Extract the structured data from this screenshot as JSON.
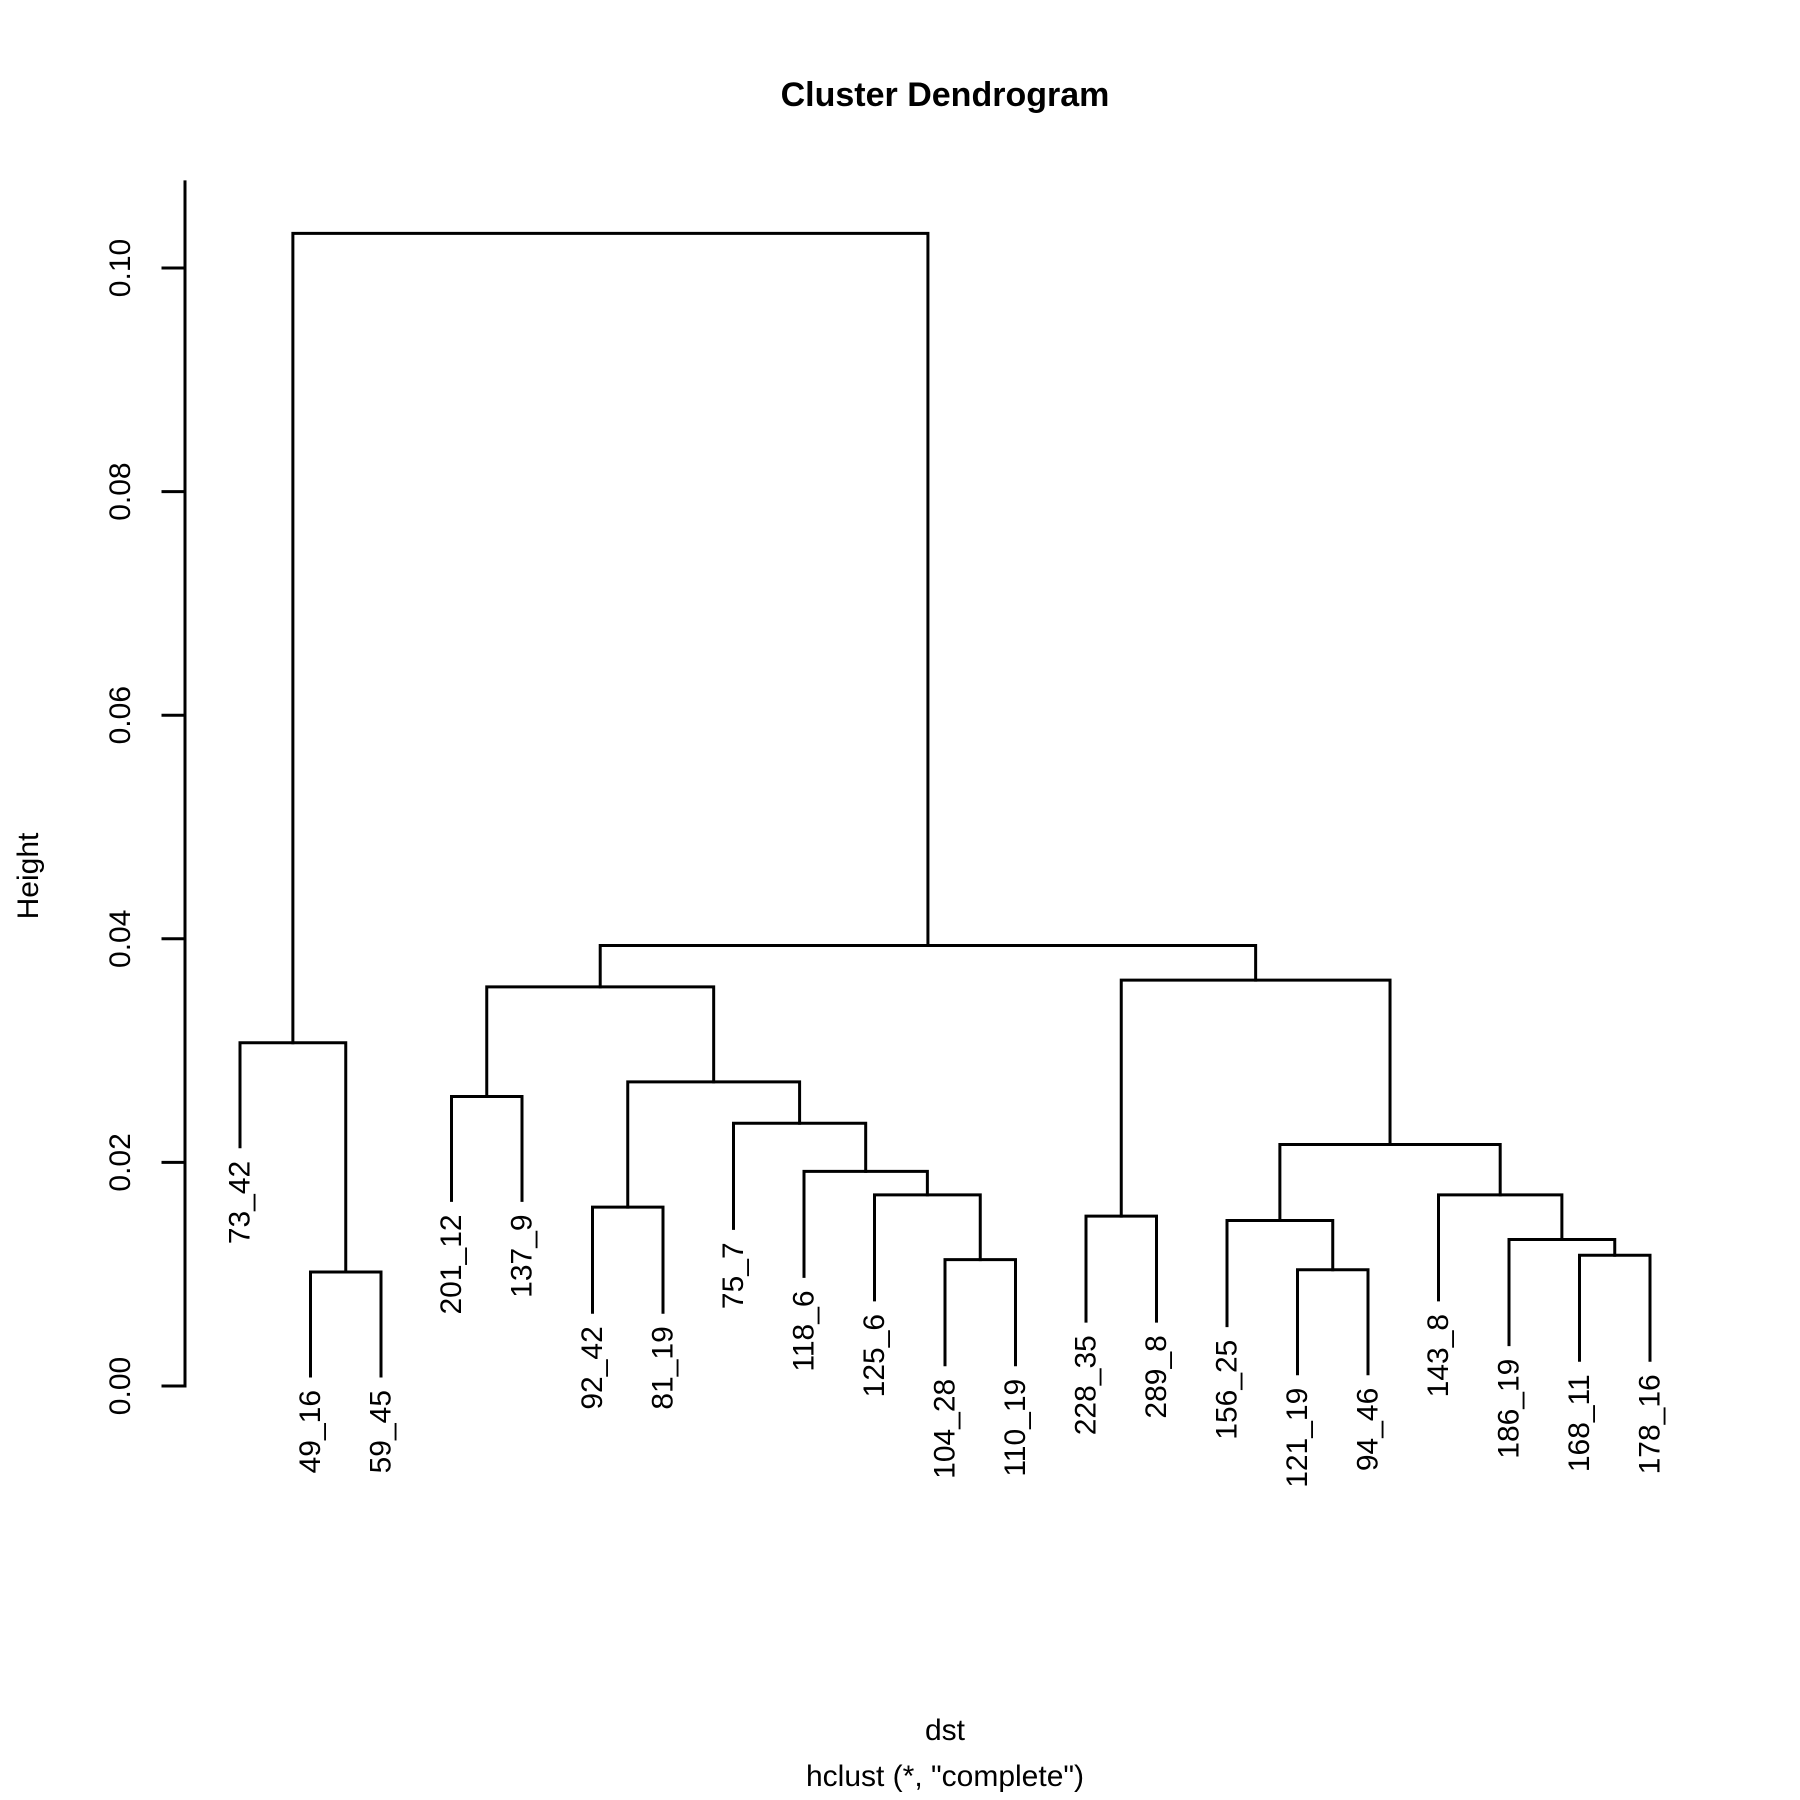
{
  "chart_data": {
    "type": "dendrogram",
    "title": "Cluster Dendrogram",
    "xlabel": "dst",
    "sub": "hclust (*, \"complete\")",
    "ylabel": "Height",
    "ylim": [
      0,
      0.1077
    ],
    "yticks": [
      "0.00",
      "0.02",
      "0.04",
      "0.06",
      "0.08",
      "0.10"
    ],
    "leaves": [
      "73_42",
      "49_16",
      "59_45",
      "201_12",
      "137_9",
      "92_42",
      "81_19",
      "75_7",
      "118_6",
      "125_6",
      "104_28",
      "110_19",
      "228_35",
      "289_8",
      "156_25",
      "121_19",
      "94_46",
      "143_8",
      "186_19",
      "168_11",
      "178_16"
    ],
    "merges": [
      {
        "a": "49_16",
        "b": "59_45",
        "height": 0.0102
      },
      {
        "a": "73_42",
        "b": 1,
        "height": 0.0307
      },
      {
        "a": "201_12",
        "b": "137_9",
        "height": 0.0259
      },
      {
        "a": "92_42",
        "b": "81_19",
        "height": 0.016
      },
      {
        "a": "104_28",
        "b": "110_19",
        "height": 0.0113
      },
      {
        "a": "125_6",
        "b": 5,
        "height": 0.0171
      },
      {
        "a": "118_6",
        "b": 6,
        "height": 0.0192
      },
      {
        "a": "75_7",
        "b": 7,
        "height": 0.0235
      },
      {
        "a": 4,
        "b": 8,
        "height": 0.0272
      },
      {
        "a": 3,
        "b": 9,
        "height": 0.0357
      },
      {
        "a": "228_35",
        "b": "289_8",
        "height": 0.0152
      },
      {
        "a": "121_19",
        "b": "94_46",
        "height": 0.0104
      },
      {
        "a": "156_25",
        "b": 12,
        "height": 0.0148
      },
      {
        "a": "168_11",
        "b": "178_16",
        "height": 0.0117
      },
      {
        "a": "186_19",
        "b": 14,
        "height": 0.0131
      },
      {
        "a": "143_8",
        "b": 15,
        "height": 0.0171
      },
      {
        "a": 13,
        "b": 16,
        "height": 0.0216
      },
      {
        "a": 11,
        "b": 17,
        "height": 0.0363
      },
      {
        "a": 10,
        "b": 18,
        "height": 0.0394
      },
      {
        "a": 2,
        "b": 19,
        "height": 0.1031
      }
    ],
    "leaf_heights": {
      "73_42": 0.0214,
      "49_16": 0.0009,
      "59_45": 0.0009,
      "201_12": 0.0166,
      "137_9": 0.0166,
      "92_42": 0.0066,
      "81_19": 0.0066,
      "75_7": 0.0141,
      "118_6": 0.0098,
      "125_6": 0.0077,
      "104_28": 0.0019,
      "110_19": 0.0019,
      "228_35": 0.0058,
      "289_8": 0.0058,
      "156_25": 0.0054,
      "121_19": 0.0011,
      "94_46": 0.0011,
      "143_8": 0.0077,
      "186_19": 0.0037,
      "168_11": 0.0023,
      "178_16": 0.0023
    }
  }
}
